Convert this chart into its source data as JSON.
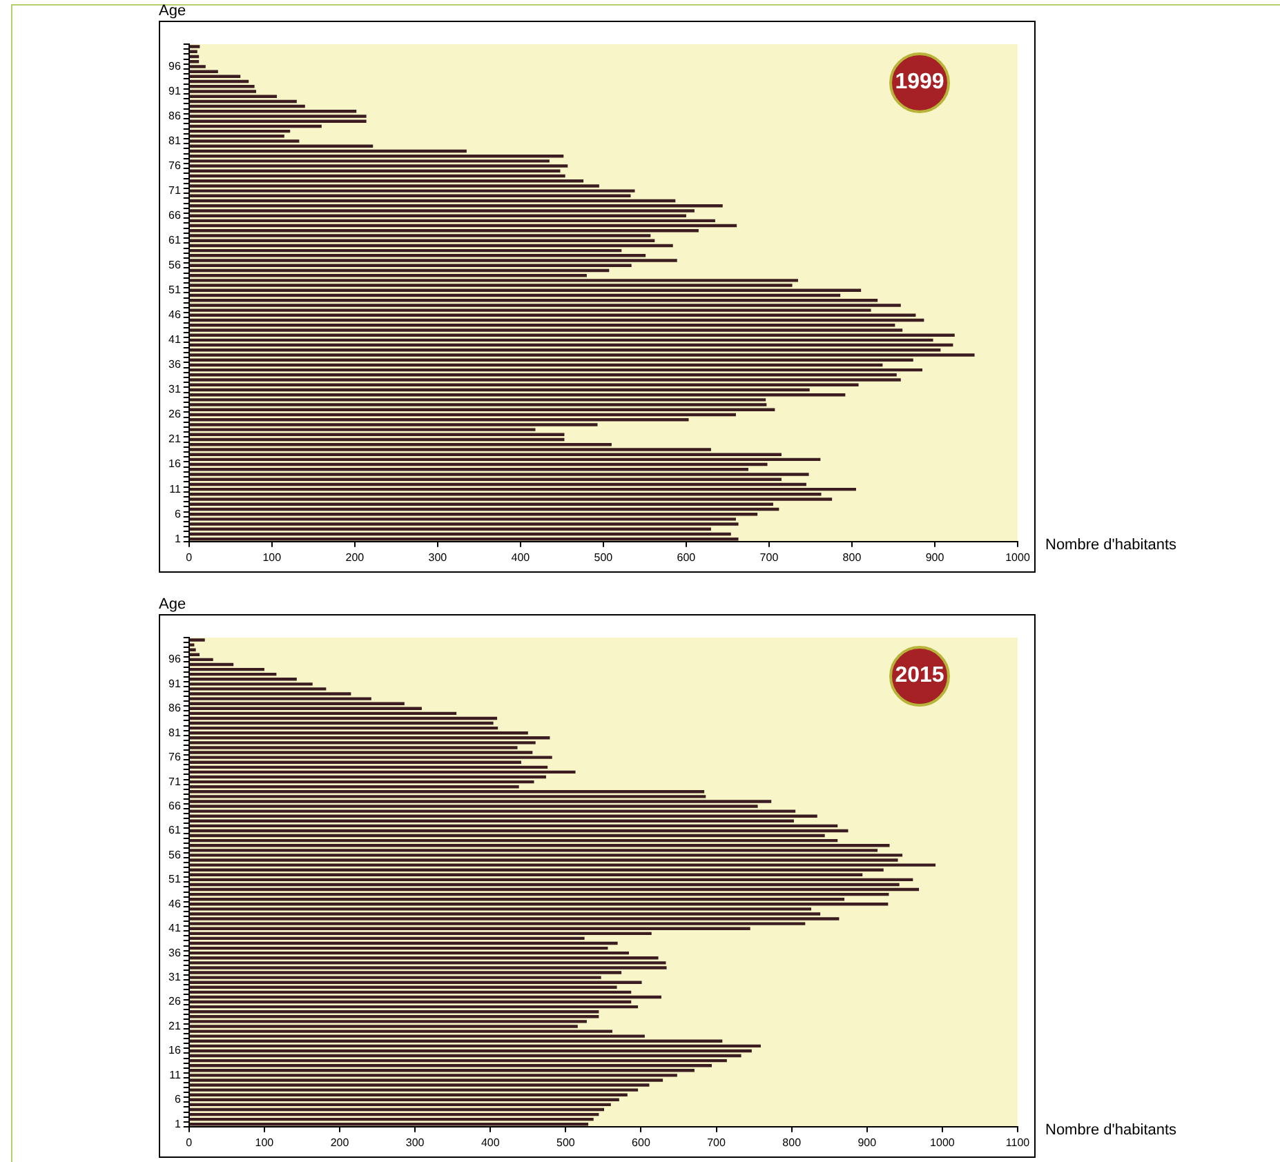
{
  "chart_data": [
    {
      "type": "bar",
      "orientation": "horizontal",
      "ylabel": "Age",
      "xlabel": "Nombre d'habitants",
      "annotations": [
        "1999"
      ],
      "color": "#3b1c20",
      "categories": [
        null,
        null,
        null,
        null,
        "96",
        null,
        null,
        null,
        null,
        "91",
        null,
        null,
        null,
        null,
        "86",
        null,
        null,
        null,
        null,
        "81",
        null,
        null,
        null,
        null,
        "76",
        null,
        null,
        null,
        null,
        "71",
        null,
        null,
        null,
        null,
        "66",
        null,
        null,
        null,
        null,
        "61",
        null,
        null,
        null,
        null,
        "56",
        null,
        null,
        null,
        null,
        "51",
        null,
        null,
        null,
        null,
        "46",
        null,
        null,
        null,
        null,
        "41",
        null,
        null,
        null,
        null,
        "36",
        null,
        null,
        null,
        null,
        "31",
        null,
        null,
        null,
        null,
        "26",
        null,
        null,
        null,
        null,
        "21",
        null,
        null,
        null,
        null,
        "16",
        null,
        null,
        null,
        null,
        "11",
        null,
        null,
        null,
        null,
        "6",
        null,
        null,
        null,
        null,
        "1"
      ],
      "values": [
        13,
        10,
        12,
        12,
        20,
        35,
        62,
        72,
        79,
        81,
        106,
        130,
        140,
        202,
        214,
        214,
        160,
        122,
        115,
        133,
        222,
        335,
        452,
        435,
        457,
        448,
        454,
        476,
        495,
        538,
        533,
        587,
        644,
        610,
        600,
        635,
        661,
        615,
        557,
        562,
        584,
        522,
        551,
        589,
        534,
        507,
        480,
        735,
        728,
        811,
        786,
        831,
        859,
        823,
        877,
        887,
        852,
        861,
        924,
        898,
        922,
        907,
        948,
        874,
        837,
        885,
        854,
        859,
        808,
        749,
        792,
        696,
        697,
        707,
        660,
        603,
        493,
        418,
        453,
        453,
        510,
        630,
        715,
        762,
        698,
        675,
        748,
        715,
        745,
        805,
        763,
        776,
        705,
        712,
        686,
        660,
        663,
        630,
        654,
        663
      ],
      "xlim": [
        0,
        1000
      ],
      "xticks": [
        0,
        100,
        200,
        300,
        400,
        500,
        600,
        700,
        800,
        900,
        1000
      ]
    },
    {
      "type": "bar",
      "orientation": "horizontal",
      "ylabel": "Age",
      "xlabel": "Nombre d'habitants",
      "annotations": [
        "2015"
      ],
      "color": "#3b1c20",
      "categories": [
        null,
        null,
        null,
        null,
        "96",
        null,
        null,
        null,
        null,
        "91",
        null,
        null,
        null,
        null,
        "86",
        null,
        null,
        null,
        null,
        "81",
        null,
        null,
        null,
        null,
        "76",
        null,
        null,
        null,
        null,
        "71",
        null,
        null,
        null,
        null,
        "66",
        null,
        null,
        null,
        null,
        "61",
        null,
        null,
        null,
        null,
        "56",
        null,
        null,
        null,
        null,
        "51",
        null,
        null,
        null,
        null,
        "46",
        null,
        null,
        null,
        null,
        "41",
        null,
        null,
        null,
        null,
        "36",
        null,
        null,
        null,
        null,
        "31",
        null,
        null,
        null,
        null,
        "26",
        null,
        null,
        null,
        null,
        "21",
        null,
        null,
        null,
        null,
        "16",
        null,
        null,
        null,
        null,
        "11",
        null,
        null,
        null,
        null,
        "6",
        null,
        null,
        null,
        null,
        "1"
      ],
      "values": [
        21,
        7,
        9,
        14,
        32,
        59,
        100,
        116,
        143,
        164,
        182,
        215,
        242,
        286,
        309,
        355,
        409,
        404,
        410,
        450,
        479,
        460,
        436,
        456,
        482,
        441,
        476,
        513,
        474,
        458,
        438,
        684,
        686,
        773,
        755,
        805,
        834,
        803,
        861,
        875,
        844,
        861,
        930,
        914,
        947,
        941,
        991,
        922,
        894,
        961,
        943,
        969,
        929,
        870,
        928,
        826,
        838,
        863,
        818,
        745,
        614,
        525,
        569,
        556,
        584,
        623,
        633,
        634,
        574,
        547,
        601,
        568,
        587,
        627,
        587,
        596,
        544,
        544,
        528,
        516,
        562,
        605,
        708,
        759,
        747,
        733,
        714,
        694,
        671,
        648,
        629,
        611,
        596,
        582,
        571,
        560,
        551,
        544,
        537,
        530
      ],
      "xlim": [
        0,
        1100
      ],
      "xticks": [
        0,
        100,
        200,
        300,
        400,
        500,
        600,
        700,
        800,
        900,
        1000,
        1100
      ]
    }
  ]
}
